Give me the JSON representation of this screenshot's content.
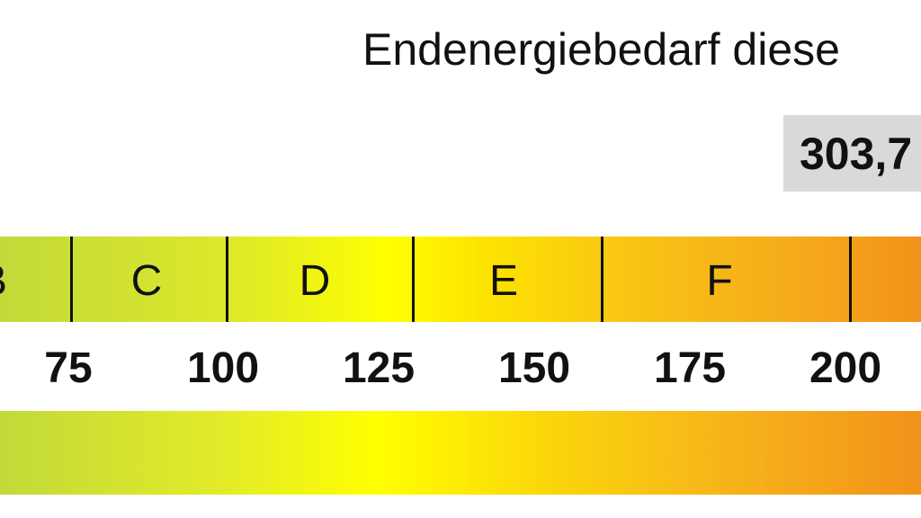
{
  "title": "Endenergiebedarf diese",
  "value": "303,7",
  "classes": [
    "B",
    "C",
    "D",
    "E",
    "F"
  ],
  "ticks": [
    "75",
    "100",
    "125",
    "150",
    "175",
    "200"
  ],
  "colors": {
    "green": "#c2d93a",
    "yellow": "#ffff00",
    "orange": "#f2921a",
    "value_box": "#d9d9d9"
  }
}
